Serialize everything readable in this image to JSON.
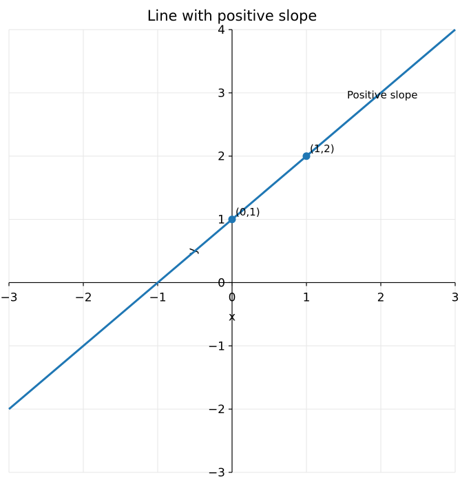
{
  "chart_data": {
    "type": "line",
    "title": "Line with positive slope",
    "x_label": "x",
    "y_label": "y",
    "series": [
      {
        "type": "line",
        "color": "#1f77b4",
        "x": [
          -3,
          3
        ],
        "values": [
          -2,
          4
        ]
      },
      {
        "type": "scatter",
        "color": "#1f77b4",
        "x": [
          0,
          1
        ],
        "values": [
          1,
          2
        ]
      }
    ],
    "annotations": [
      {
        "text": "(0,1)",
        "x": 0,
        "y": 1
      },
      {
        "text": "(1,2)",
        "x": 1,
        "y": 2
      },
      {
        "text": "Positive slope",
        "x": 1.5,
        "y": 2.85
      }
    ],
    "xlim": [
      -3,
      3
    ],
    "ylim": [
      -3,
      4
    ],
    "xticks": [
      {
        "value": -3,
        "label": "−3"
      },
      {
        "value": -2,
        "label": "−2"
      },
      {
        "value": -1,
        "label": "−1"
      },
      0,
      1,
      2,
      3
    ],
    "yticks": [
      {
        "value": -3,
        "label": "−3"
      },
      {
        "value": -2,
        "label": "−2"
      },
      {
        "value": -1,
        "label": "−1"
      },
      0,
      1,
      2,
      3,
      4
    ],
    "grid": true
  }
}
